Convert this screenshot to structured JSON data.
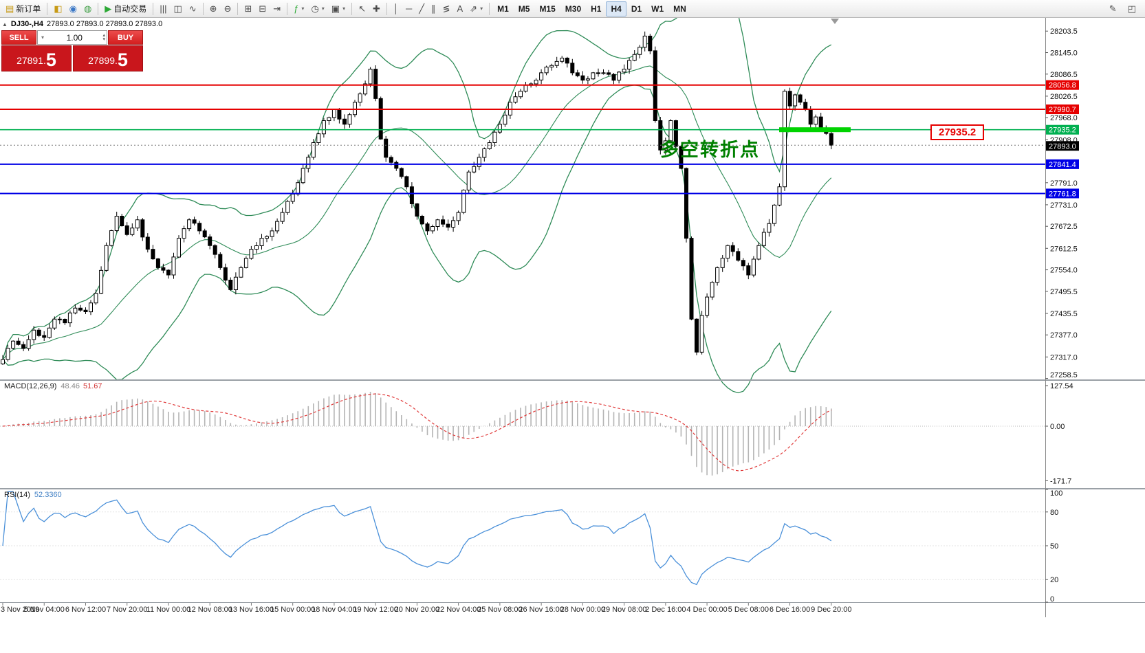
{
  "toolbar": {
    "groups": [
      {
        "items": [
          {
            "name": "new-order-button",
            "glyph": "▤",
            "glyph_color": "#c79a16",
            "label": "新订单"
          }
        ]
      },
      {
        "items": [
          {
            "name": "market-watch-icon",
            "glyph": "◧",
            "glyph_color": "#c79a16"
          },
          {
            "name": "navigator-icon",
            "glyph": "◉",
            "glyph_color": "#3a77c6"
          },
          {
            "name": "terminal-icon",
            "glyph": "◍",
            "glyph_color": "#42a048"
          }
        ]
      },
      {
        "items": [
          {
            "name": "auto-trading-button",
            "glyph": "▶",
            "glyph_color": "#2ca835",
            "label": "自动交易"
          }
        ]
      },
      {
        "items": [
          {
            "name": "bar-chart-icon",
            "glyph": "|||"
          },
          {
            "name": "candlestick-chart-icon",
            "glyph": "◫"
          },
          {
            "name": "line-chart-icon",
            "glyph": "∿"
          }
        ]
      },
      {
        "items": [
          {
            "name": "zoom-in-icon",
            "glyph": "⊕"
          },
          {
            "name": "zoom-out-icon",
            "glyph": "⊖"
          }
        ]
      },
      {
        "items": [
          {
            "name": "tile-windows-icon",
            "glyph": "⊞"
          },
          {
            "name": "auto-arrange-icon",
            "glyph": "⊟"
          },
          {
            "name": "chart-shift-icon",
            "glyph": "⇥"
          }
        ]
      },
      {
        "items": [
          {
            "name": "indicators-icon",
            "glyph": "ƒ",
            "glyph_color": "#2ca835",
            "dd": true
          },
          {
            "name": "periods-icon",
            "glyph": "◷",
            "dd": true
          },
          {
            "name": "templates-icon",
            "glyph": "▣",
            "dd": true
          }
        ]
      },
      {
        "items": [
          {
            "name": "cursor-icon",
            "glyph": "↖"
          },
          {
            "name": "crosshair-icon",
            "glyph": "✚"
          }
        ]
      },
      {
        "items": [
          {
            "name": "vertical-line-icon",
            "glyph": "│"
          },
          {
            "name": "horizontal-line-icon",
            "glyph": "─"
          },
          {
            "name": "trendline-icon",
            "glyph": "╱"
          },
          {
            "name": "channel-icon",
            "glyph": "∥"
          },
          {
            "name": "fibonacci-icon",
            "glyph": "≶"
          },
          {
            "name": "text-icon",
            "glyph": "A"
          },
          {
            "name": "arrows-icon",
            "glyph": "⇗",
            "dd": true
          }
        ]
      },
      {
        "items": [
          {
            "name": "tf-m1-button",
            "label": "M1",
            "tf": true
          },
          {
            "name": "tf-m5-button",
            "label": "M5",
            "tf": true
          },
          {
            "name": "tf-m15-button",
            "label": "M15",
            "tf": true
          },
          {
            "name": "tf-m30-button",
            "label": "M30",
            "tf": true
          },
          {
            "name": "tf-h1-button",
            "label": "H1",
            "tf": true
          },
          {
            "name": "tf-h4-button",
            "label": "H4",
            "tf": true,
            "active": true
          },
          {
            "name": "tf-d1-button",
            "label": "D1",
            "tf": true
          },
          {
            "name": "tf-w1-button",
            "label": "W1",
            "tf": true
          },
          {
            "name": "tf-mn-button",
            "label": "MN",
            "tf": true
          }
        ]
      }
    ],
    "right_items": [
      {
        "name": "pencil-tool-icon",
        "glyph": "✎"
      },
      {
        "name": "new-window-icon",
        "glyph": "◰"
      }
    ]
  },
  "symbol_info": {
    "collapse_icon": "▲",
    "title": "DJ30-,H4",
    "ohlc_text": "27893.0 27893.0 27893.0 27893.0"
  },
  "trade_panel": {
    "sell_label": "SELL",
    "buy_label": "BUY",
    "volume": "1.00",
    "sell_price": {
      "main": "27891.",
      "big": "5"
    },
    "buy_price": {
      "main": "27899.",
      "big": "5"
    }
  },
  "chart_data": {
    "type": "candlestick",
    "symbol": "DJ30-",
    "timeframe": "H4",
    "price_axis_ticks": [
      "28203.5",
      "28145.0",
      "28086.5",
      "28026.5",
      "27968.0",
      "27908.0",
      "27791.0",
      "27731.0",
      "27672.5",
      "27612.5",
      "27554.0",
      "27495.5",
      "27435.5",
      "27377.0",
      "27317.0",
      "27258.5"
    ],
    "line_levels": [
      {
        "price": 28056.8,
        "label": "28056.8",
        "color": "#e60000",
        "width": 2
      },
      {
        "price": 27990.7,
        "label": "27990.7",
        "color": "#e60000",
        "width": 2
      },
      {
        "price": 27935.2,
        "label": "27935.2",
        "color": "#00b050",
        "width": 1.6
      },
      {
        "price": 27841.4,
        "label": "27841.4",
        "color": "#0000e6",
        "width": 2
      },
      {
        "price": 27761.8,
        "label": "27761.8",
        "color": "#0000e6",
        "width": 2
      }
    ],
    "current_price": "27893.0",
    "candles": {
      "count": 161,
      "price_path": [
        [
          0,
          27310
        ],
        [
          2,
          27360
        ],
        [
          4,
          27340
        ],
        [
          6,
          27390
        ],
        [
          8,
          27370
        ],
        [
          10,
          27420
        ],
        [
          12,
          27410
        ],
        [
          14,
          27450
        ],
        [
          16,
          27440
        ],
        [
          18,
          27490
        ],
        [
          20,
          27620
        ],
        [
          22,
          27700
        ],
        [
          24,
          27650
        ],
        [
          26,
          27690
        ],
        [
          28,
          27610
        ],
        [
          30,
          27560
        ],
        [
          32,
          27540
        ],
        [
          34,
          27640
        ],
        [
          36,
          27690
        ],
        [
          38,
          27660
        ],
        [
          40,
          27620
        ],
        [
          42,
          27560
        ],
        [
          44,
          27500
        ],
        [
          46,
          27560
        ],
        [
          48,
          27610
        ],
        [
          50,
          27640
        ],
        [
          52,
          27660
        ],
        [
          54,
          27710
        ],
        [
          56,
          27760
        ],
        [
          58,
          27830
        ],
        [
          60,
          27900
        ],
        [
          62,
          27960
        ],
        [
          64,
          27990
        ],
        [
          66,
          27950
        ],
        [
          68,
          28010
        ],
        [
          70,
          28060
        ],
        [
          71,
          28100
        ],
        [
          72,
          28020
        ],
        [
          73,
          27910
        ],
        [
          74,
          27860
        ],
        [
          76,
          27830
        ],
        [
          78,
          27780
        ],
        [
          80,
          27700
        ],
        [
          82,
          27660
        ],
        [
          84,
          27690
        ],
        [
          86,
          27670
        ],
        [
          88,
          27710
        ],
        [
          90,
          27820
        ],
        [
          92,
          27860
        ],
        [
          94,
          27900
        ],
        [
          96,
          27950
        ],
        [
          98,
          28010
        ],
        [
          100,
          28040
        ],
        [
          102,
          28060
        ],
        [
          104,
          28090
        ],
        [
          106,
          28110
        ],
        [
          108,
          28130
        ],
        [
          110,
          28090
        ],
        [
          112,
          28070
        ],
        [
          114,
          28090
        ],
        [
          116,
          28090
        ],
        [
          118,
          28070
        ],
        [
          120,
          28100
        ],
        [
          122,
          28140
        ],
        [
          124,
          28190
        ],
        [
          125,
          28150
        ],
        [
          126,
          27960
        ],
        [
          127,
          27880
        ],
        [
          128,
          27905
        ],
        [
          129,
          27960
        ],
        [
          130,
          27890
        ],
        [
          131,
          27830
        ],
        [
          132,
          27640
        ],
        [
          133,
          27420
        ],
        [
          134,
          27330
        ],
        [
          135,
          27430
        ],
        [
          136,
          27480
        ],
        [
          137,
          27520
        ],
        [
          138,
          27560
        ],
        [
          140,
          27620
        ],
        [
          142,
          27580
        ],
        [
          144,
          27540
        ],
        [
          146,
          27620
        ],
        [
          148,
          27680
        ],
        [
          149,
          27730
        ],
        [
          150,
          27780
        ],
        [
          151,
          28040
        ],
        [
          152,
          28000
        ],
        [
          153,
          28030
        ],
        [
          154,
          28010
        ],
        [
          155,
          27990
        ],
        [
          156,
          27950
        ],
        [
          157,
          27970
        ],
        [
          158,
          27940
        ],
        [
          159,
          27925
        ],
        [
          160,
          27893
        ]
      ]
    },
    "bollinger": {
      "period": 20,
      "deviation": 2,
      "color": "#2e8b57"
    },
    "annotation": {
      "text": "多空转折点",
      "color": "#008000"
    },
    "price_flag": {
      "text": "27935.2",
      "color": "#e60000"
    },
    "highlight_segment": {
      "price": 27935.2,
      "color": "#00d300"
    },
    "time_axis": [
      {
        "i": 0,
        "label": "3 Nov 2019"
      },
      {
        "i": 8,
        "label": "5 Nov 04:00"
      },
      {
        "i": 16,
        "label": "6 Nov 12:00"
      },
      {
        "i": 24,
        "label": "7 Nov 20:00"
      },
      {
        "i": 32,
        "label": "11 Nov 00:00"
      },
      {
        "i": 40,
        "label": "12 Nov 08:00"
      },
      {
        "i": 48,
        "label": "13 Nov 16:00"
      },
      {
        "i": 56,
        "label": "15 Nov 00:00"
      },
      {
        "i": 64,
        "label": "18 Nov 04:00"
      },
      {
        "i": 72,
        "label": "19 Nov 12:00"
      },
      {
        "i": 80,
        "label": "20 Nov 20:00"
      },
      {
        "i": 88,
        "label": "22 Nov 04:00"
      },
      {
        "i": 96,
        "label": "25 Nov 08:00"
      },
      {
        "i": 104,
        "label": "26 Nov 16:00"
      },
      {
        "i": 112,
        "label": "28 Nov 00:00"
      },
      {
        "i": 120,
        "label": "29 Nov 08:00"
      },
      {
        "i": 128,
        "label": "2 Dec 16:00"
      },
      {
        "i": 136,
        "label": "4 Dec 00:00"
      },
      {
        "i": 144,
        "label": "5 Dec 08:00"
      },
      {
        "i": 152,
        "label": "6 Dec 16:00"
      },
      {
        "i": 160,
        "label": "9 Dec 20:00"
      }
    ],
    "macd": {
      "label": "MACD(12,26,9)",
      "value1": "48.46",
      "value2": "51.67",
      "axis_ticks": [
        "127.54",
        "0.00",
        "-171.7"
      ],
      "histogram_color": "#b4b4b4",
      "signal_color": "#e03a3a"
    },
    "rsi": {
      "label": "RSI(14)",
      "value": "52.3360",
      "axis_ticks": [
        "100",
        "80",
        "50",
        "20",
        "0"
      ],
      "line_color": "#4a90d9"
    }
  }
}
